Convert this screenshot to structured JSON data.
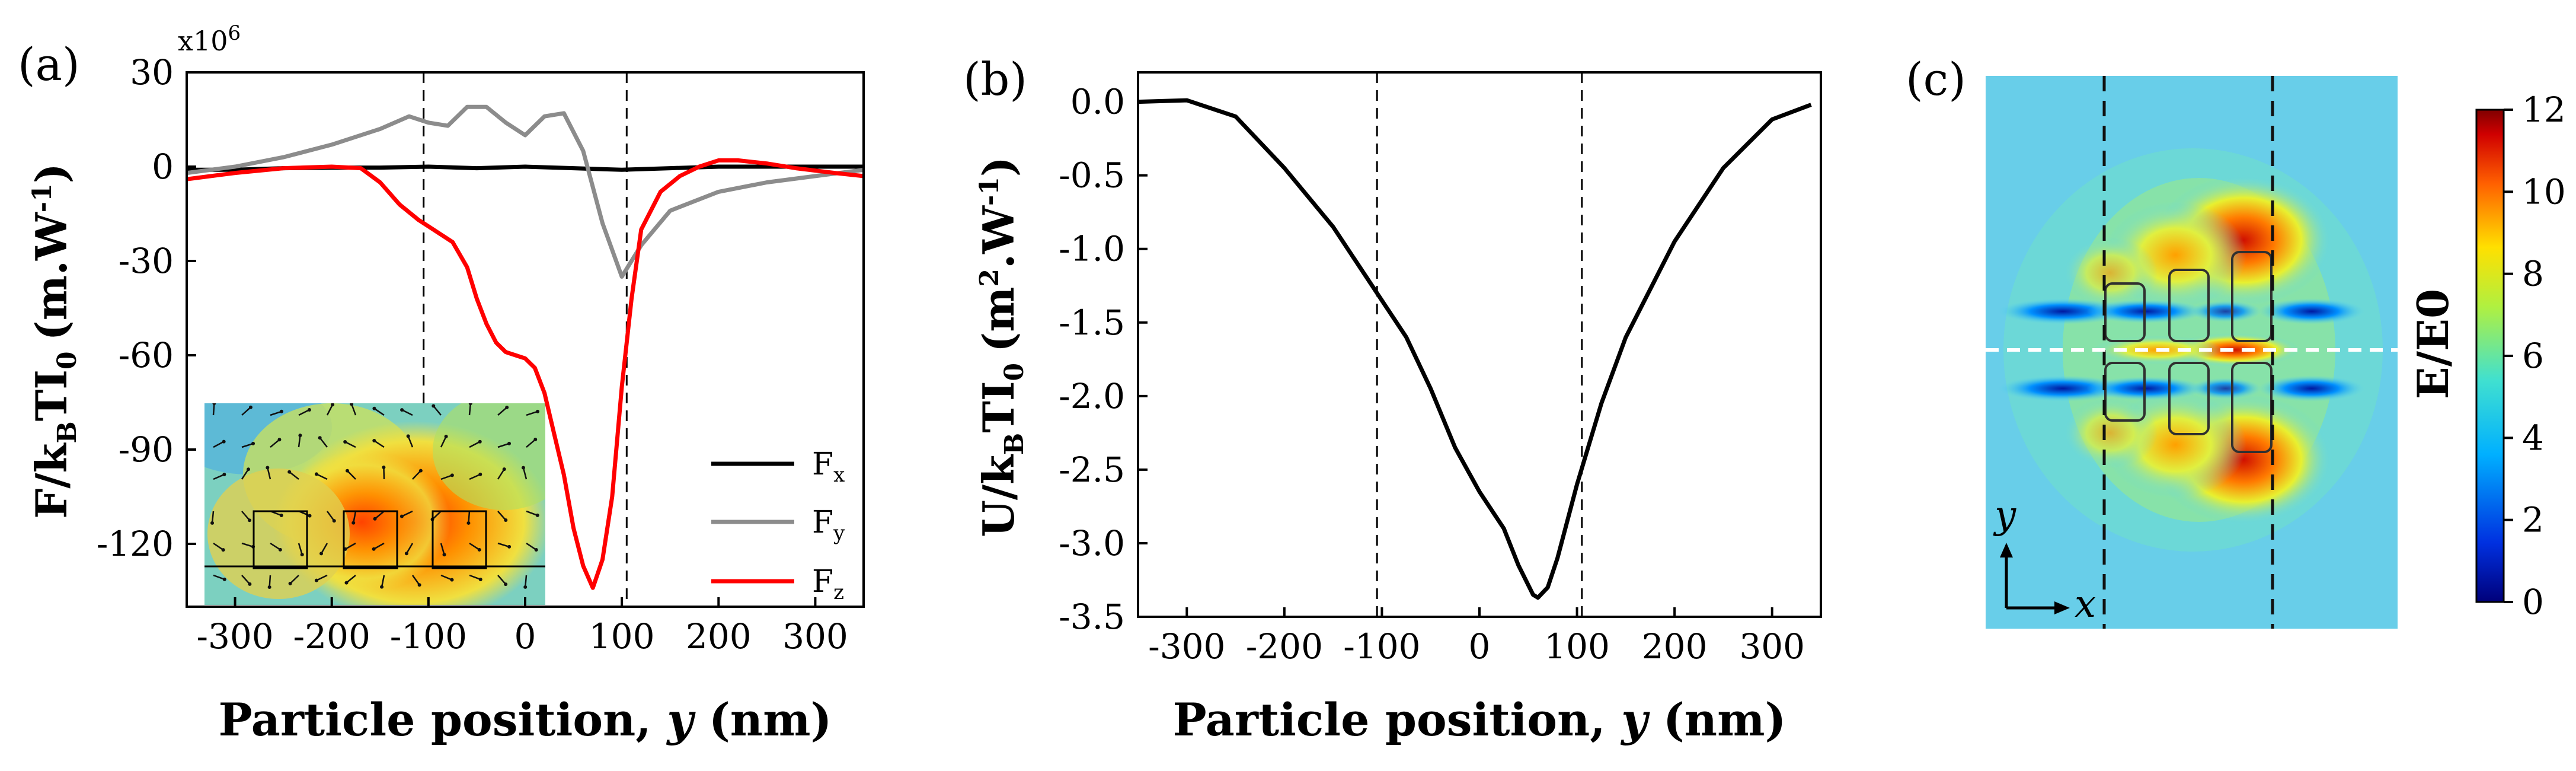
{
  "chart_data": [
    {
      "panel_label": "(a)",
      "type": "line",
      "xlabel_prefix": "Particle position, ",
      "xlabel_var": "y",
      "xlabel_suffix": " (nm)",
      "ylabel_main": "F/k",
      "ylabel_sub_B": "B",
      "ylabel_TI": "TI",
      "ylabel_sub_0": "0",
      "ylabel_unit": "(m.W",
      "ylabel_sup": "-1",
      "ylabel_close": ")",
      "y_multiplier": "x10",
      "y_multiplier_exp": "6",
      "xlim": [
        -350,
        350
      ],
      "ylim": [
        -140,
        30
      ],
      "xticks": [
        -300,
        -200,
        -100,
        0,
        100,
        200,
        300
      ],
      "yticks": [
        30,
        0,
        -30,
        -60,
        -90,
        -120
      ],
      "vlines": [
        -105,
        105
      ],
      "legend_position": "bottom-right",
      "series": [
        {
          "name": "F",
          "sub": "x",
          "color": "#000000",
          "x": [
            -350,
            -300,
            -250,
            -200,
            -150,
            -100,
            -50,
            0,
            50,
            100,
            150,
            200,
            250,
            300,
            350
          ],
          "y": [
            -1,
            -1,
            -0.5,
            -0.3,
            -0.3,
            0,
            -0.5,
            0,
            -0.5,
            -1,
            -0.5,
            0,
            0,
            0,
            0
          ]
        },
        {
          "name": "F",
          "sub": "y",
          "color": "#8c8c8c",
          "x": [
            -350,
            -300,
            -250,
            -200,
            -150,
            -120,
            -100,
            -80,
            -60,
            -40,
            -20,
            0,
            20,
            40,
            60,
            80,
            100,
            120,
            150,
            200,
            250,
            300,
            350
          ],
          "y": [
            -2,
            0,
            3,
            7,
            12,
            16,
            14,
            13,
            19,
            19,
            14,
            10,
            16,
            17,
            5,
            -18,
            -35,
            -25,
            -14,
            -8,
            -5,
            -3,
            -1
          ]
        },
        {
          "name": "F",
          "sub": "z",
          "color": "#ff0000",
          "x": [
            -350,
            -300,
            -250,
            -200,
            -170,
            -150,
            -130,
            -110,
            -100,
            -90,
            -75,
            -60,
            -50,
            -40,
            -30,
            -20,
            -10,
            0,
            10,
            20,
            30,
            40,
            50,
            60,
            70,
            80,
            90,
            100,
            110,
            120,
            140,
            160,
            180,
            200,
            220,
            250,
            280,
            320,
            350
          ],
          "y": [
            -4,
            -2,
            -0.5,
            0,
            -0.5,
            -5,
            -12,
            -17,
            -19,
            -21,
            -24,
            -32,
            -42,
            -50,
            -56,
            -59,
            -60,
            -61,
            -64,
            -72,
            -85,
            -98,
            -115,
            -127,
            -134,
            -125,
            -105,
            -70,
            -42,
            -20,
            -8,
            -3,
            0,
            2,
            2,
            1,
            -0.5,
            -2,
            -3
          ]
        }
      ],
      "inset_arrows_label": "force vector map"
    },
    {
      "panel_label": "(b)",
      "type": "line",
      "xlabel_prefix": "Particle position, ",
      "xlabel_var": "y",
      "xlabel_suffix": " (nm)",
      "ylabel_main": "U/k",
      "ylabel_sub_B": "B",
      "ylabel_TI": "TI",
      "ylabel_sub_0": "0",
      "ylabel_unit": "(m",
      "ylabel_sup2": "2",
      "ylabel_dotW": ".W",
      "ylabel_sup": "-1",
      "ylabel_close": ")",
      "xlim": [
        -350,
        350
      ],
      "ylim": [
        -3.5,
        0.2
      ],
      "xticks": [
        -300,
        -200,
        -100,
        0,
        100,
        200,
        300
      ],
      "yticks": [
        "0.0",
        "-0.5",
        "-1.0",
        "-1.5",
        "-2.0",
        "-2.5",
        "-3.0",
        "-3.5"
      ],
      "vlines": [
        -105,
        105
      ],
      "series": [
        {
          "name": "U",
          "color": "#000000",
          "x": [
            -350,
            -300,
            -250,
            -200,
            -150,
            -100,
            -75,
            -50,
            -25,
            0,
            25,
            40,
            55,
            60,
            70,
            80,
            100,
            125,
            150,
            200,
            250,
            300,
            340
          ],
          "y": [
            0.0,
            0.01,
            -0.1,
            -0.45,
            -0.85,
            -1.35,
            -1.6,
            -1.95,
            -2.35,
            -2.65,
            -2.9,
            -3.15,
            -3.35,
            -3.37,
            -3.3,
            -3.1,
            -2.6,
            -2.05,
            -1.6,
            -0.95,
            -0.45,
            -0.12,
            -0.02
          ]
        }
      ]
    },
    {
      "panel_label": "(c)",
      "type": "heatmap",
      "colorbar_label": "E/E0",
      "colorbar_ticks": [
        12,
        10,
        8,
        6,
        4,
        2,
        0
      ],
      "colorbar_range": [
        0,
        12
      ],
      "axis_y": "y",
      "axis_x": "x",
      "colormap_colors": [
        "#00007a",
        "#0040ff",
        "#00c8ff",
        "#60e0a0",
        "#e6f020",
        "#ff8000",
        "#d00000",
        "#800000"
      ]
    }
  ]
}
